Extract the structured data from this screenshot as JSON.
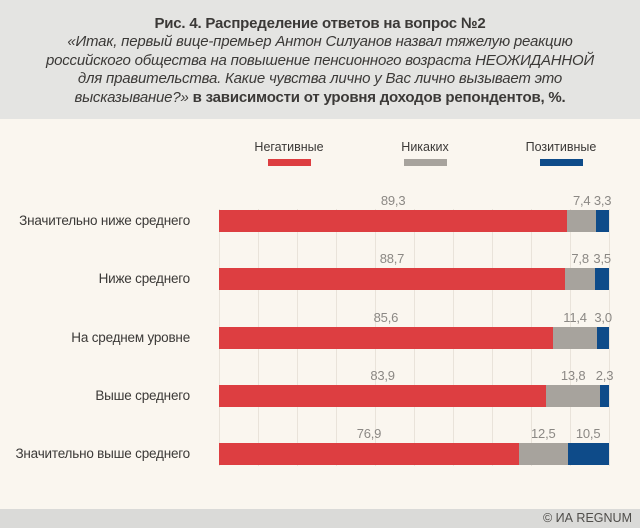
{
  "title": {
    "heading": "Рис. 4. Распределение ответов на вопрос №2",
    "quote_lines": [
      "«Итак, первый вице-премьер Антон Силуанов назвал тяжелую реакцию",
      "российского общества на повышение пенсионного возраста НЕОЖИДАННОЙ",
      "для правительства. Какие чувства лично у Вас лично вызывает это"
    ],
    "quote_tail": "высказывание?»",
    "bold_tail": "в зависимости от уровня доходов репондентов, %."
  },
  "legend": {
    "items": [
      {
        "key": "negative",
        "label": "Негативные",
        "color": "#dd3e41"
      },
      {
        "key": "none",
        "label": "Никаких",
        "color": "#a7a39d"
      },
      {
        "key": "positive",
        "label": "Позитивные",
        "color": "#0e4b89"
      }
    ]
  },
  "chart_data": {
    "type": "bar",
    "orientation": "horizontal",
    "stacked": true,
    "unit": "%",
    "xlim": [
      0,
      100
    ],
    "gridline_step_pct": 10,
    "grid": true,
    "legend_position": "top",
    "categories": [
      "Значительно ниже среднего",
      "Ниже среднего",
      "На среднем уровне",
      "Выше среднего",
      "Значительно выше среднего"
    ],
    "series": [
      {
        "key": "negative",
        "name": "Негативные",
        "color": "#dd3e41",
        "values": [
          89.3,
          88.7,
          85.6,
          83.9,
          76.9
        ]
      },
      {
        "key": "none",
        "name": "Никаких",
        "color": "#a7a39d",
        "values": [
          7.4,
          7.8,
          11.4,
          13.8,
          12.5
        ]
      },
      {
        "key": "positive",
        "name": "Позитивные",
        "color": "#0e4b89",
        "values": [
          3.3,
          3.5,
          3.0,
          2.3,
          10.5
        ]
      }
    ],
    "value_labels": [
      [
        "89,3",
        "7,4",
        "3,3"
      ],
      [
        "88,7",
        "7,8",
        "3,5"
      ],
      [
        "85,6",
        "11,4",
        "3,0"
      ],
      [
        "83,9",
        "13,8",
        "2,3"
      ],
      [
        "76,9",
        "12,5",
        "10,5"
      ]
    ]
  },
  "footer": {
    "credit": "© ИА REGNUM"
  },
  "colors": {
    "header_bg": "#e4e4e2",
    "body_bg": "#faf6ef",
    "footer_bg": "#dadad8",
    "gridline": "#e9e3da",
    "value_label": "#8b8884",
    "text_dark": "#3b3937"
  }
}
